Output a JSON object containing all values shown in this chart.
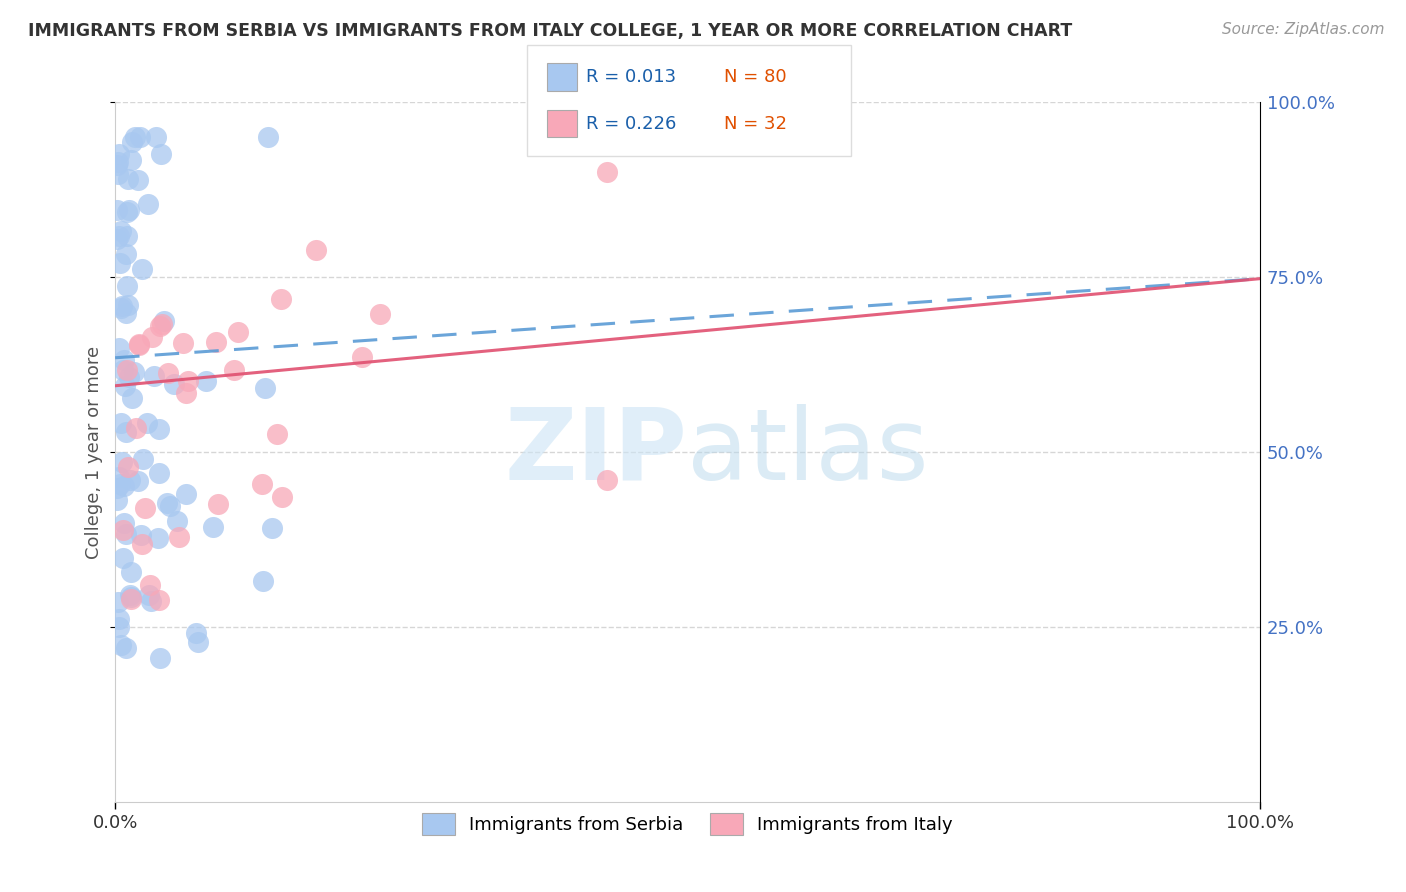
{
  "title": "IMMIGRANTS FROM SERBIA VS IMMIGRANTS FROM ITALY COLLEGE, 1 YEAR OR MORE CORRELATION CHART",
  "source": "Source: ZipAtlas.com",
  "ylabel": "College, 1 year or more",
  "xlim": [
    0.0,
    1.0
  ],
  "ylim": [
    0.0,
    1.0
  ],
  "serbia_color": "#a8c8f0",
  "serbia_edge_color": "#7aafd4",
  "italy_color": "#f8a8b8",
  "italy_edge_color": "#e080a0",
  "serbia_line_color": "#5b9bd5",
  "italy_line_color": "#e05070",
  "grid_color": "#cccccc",
  "background_color": "#ffffff",
  "title_color": "#333333",
  "axis_label_color": "#555555",
  "right_tick_color": "#4472c4",
  "watermark_color": "#cce4f5",
  "legend_R_serbia": "R = 0.013",
  "legend_N_serbia": "N = 80",
  "legend_R_italy": "R = 0.226",
  "legend_N_italy": "N = 32",
  "serbia_trend_x0": 0.0,
  "serbia_trend_y0": 0.635,
  "serbia_trend_x1": 1.0,
  "serbia_trend_y1": 0.748,
  "italy_trend_x0": 0.0,
  "italy_trend_y0": 0.595,
  "italy_trend_x1": 1.0,
  "italy_trend_y1": 0.748
}
